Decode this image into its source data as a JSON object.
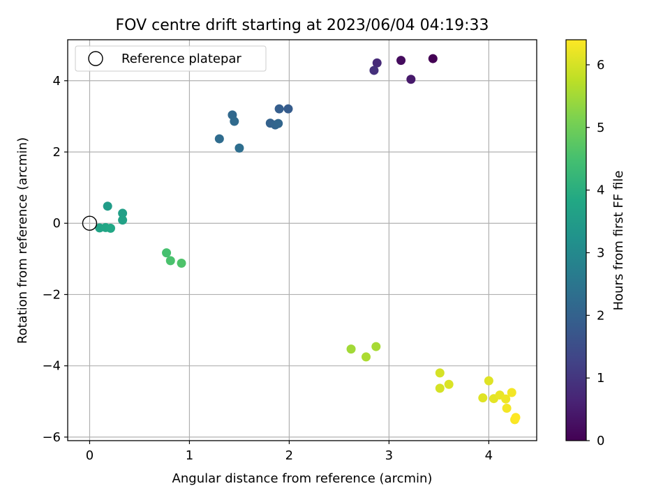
{
  "chart_data": {
    "type": "scatter",
    "title": "FOV centre drift starting at 2023/06/04 04:19:33",
    "xlabel": "Angular distance from reference (arcmin)",
    "ylabel": "Rotation from reference (arcmin)",
    "xlim": [
      -0.22,
      4.48
    ],
    "ylim": [
      -6.1,
      5.15
    ],
    "xticks": [
      0,
      1,
      2,
      3,
      4
    ],
    "yticks": [
      -6,
      -4,
      -2,
      0,
      2,
      4
    ],
    "xtick_labels": [
      "0",
      "1",
      "2",
      "3",
      "4"
    ],
    "ytick_labels": [
      "−6",
      "−4",
      "−2",
      "0",
      "2",
      "4"
    ],
    "grid": true,
    "legend": {
      "position": "upper-left",
      "entries": [
        "Reference platepar"
      ]
    },
    "reference_point": {
      "x": 0,
      "y": 0,
      "label": "Reference platepar"
    },
    "colorbar": {
      "label": "Hours from first FF file",
      "colormap": "viridis",
      "range": [
        0,
        6.4
      ],
      "ticks": [
        0,
        1,
        2,
        3,
        4,
        5,
        6
      ],
      "tick_labels": [
        "0",
        "1",
        "2",
        "3",
        "4",
        "5",
        "6"
      ]
    },
    "points": [
      {
        "x": 3.44,
        "y": 4.62,
        "hours": 0.0
      },
      {
        "x": 3.12,
        "y": 4.57,
        "hours": 0.2
      },
      {
        "x": 3.22,
        "y": 4.04,
        "hours": 0.45
      },
      {
        "x": 2.88,
        "y": 4.5,
        "hours": 0.75
      },
      {
        "x": 2.85,
        "y": 4.29,
        "hours": 0.9
      },
      {
        "x": 1.99,
        "y": 3.21,
        "hours": 1.85
      },
      {
        "x": 1.9,
        "y": 3.21,
        "hours": 1.9
      },
      {
        "x": 1.81,
        "y": 2.81,
        "hours": 2.0
      },
      {
        "x": 1.86,
        "y": 2.76,
        "hours": 2.05
      },
      {
        "x": 1.89,
        "y": 2.8,
        "hours": 2.1
      },
      {
        "x": 1.43,
        "y": 3.04,
        "hours": 2.15
      },
      {
        "x": 1.45,
        "y": 2.86,
        "hours": 2.2
      },
      {
        "x": 1.3,
        "y": 2.37,
        "hours": 2.25
      },
      {
        "x": 1.5,
        "y": 2.11,
        "hours": 2.3
      },
      {
        "x": 0.18,
        "y": 0.48,
        "hours": 3.5
      },
      {
        "x": 0.33,
        "y": 0.28,
        "hours": 3.6
      },
      {
        "x": 0.33,
        "y": 0.09,
        "hours": 3.65
      },
      {
        "x": 0.1,
        "y": -0.13,
        "hours": 3.7
      },
      {
        "x": 0.16,
        "y": -0.12,
        "hours": 3.75
      },
      {
        "x": 0.21,
        "y": -0.14,
        "hours": 3.8
      },
      {
        "x": 0.77,
        "y": -0.83,
        "hours": 4.5
      },
      {
        "x": 0.81,
        "y": -1.05,
        "hours": 4.55
      },
      {
        "x": 0.92,
        "y": -1.12,
        "hours": 4.6
      },
      {
        "x": 2.62,
        "y": -3.53,
        "hours": 5.5
      },
      {
        "x": 2.87,
        "y": -3.46,
        "hours": 5.55
      },
      {
        "x": 2.77,
        "y": -3.75,
        "hours": 5.6
      },
      {
        "x": 3.51,
        "y": -4.2,
        "hours": 6.0
      },
      {
        "x": 3.51,
        "y": -4.63,
        "hours": 6.0
      },
      {
        "x": 3.6,
        "y": -4.52,
        "hours": 6.05
      },
      {
        "x": 3.94,
        "y": -4.9,
        "hours": 6.1
      },
      {
        "x": 4.0,
        "y": -4.42,
        "hours": 6.1
      },
      {
        "x": 4.05,
        "y": -4.92,
        "hours": 6.15
      },
      {
        "x": 4.11,
        "y": -4.82,
        "hours": 6.2
      },
      {
        "x": 4.17,
        "y": -4.93,
        "hours": 6.25
      },
      {
        "x": 4.18,
        "y": -5.19,
        "hours": 6.3
      },
      {
        "x": 4.23,
        "y": -4.75,
        "hours": 6.3
      },
      {
        "x": 4.26,
        "y": -5.51,
        "hours": 6.35
      },
      {
        "x": 4.27,
        "y": -5.45,
        "hours": 6.4
      }
    ]
  }
}
